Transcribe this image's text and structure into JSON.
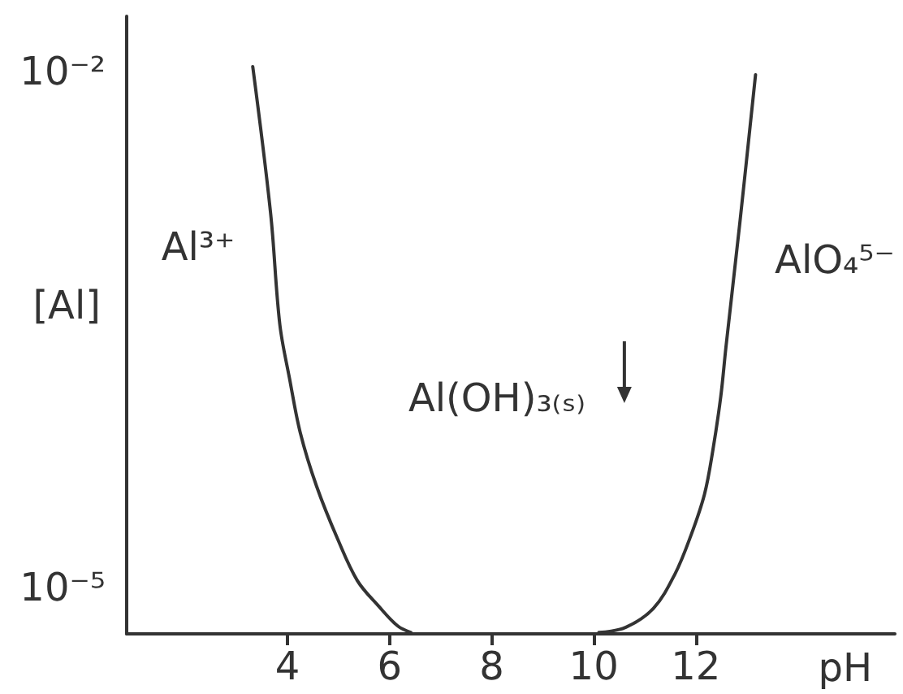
{
  "chart_data": {
    "type": "line",
    "xlabel": "pH",
    "ylabel": "[Al]",
    "log": "y",
    "xlim": [
      0.85,
      15.9
    ],
    "xticks": [
      4,
      6,
      8,
      10,
      12
    ],
    "ylim": [
      5.4e-06,
      0.021
    ],
    "yticks": [
      {
        "value": 0.01,
        "label": "10⁻²"
      },
      {
        "value": 1e-05,
        "label": "10⁻⁵"
      }
    ],
    "marker": "none",
    "line_style": "solid",
    "series": [
      {
        "color": "#333333",
        "x": [
          3.32,
          3.67,
          3.85,
          4.04,
          4.25,
          4.57,
          4.99,
          5.37,
          5.79,
          6.16,
          6.42
        ],
        "values": [
          0.0107,
          0.0015,
          0.00034,
          0.000165,
          8e-05,
          3.9e-05,
          1.9e-05,
          1.1e-05,
          7.8e-06,
          6e-06,
          5.5e-06
        ]
      },
      {
        "color": "#333333",
        "x": [
          10.1,
          10.63,
          11.17,
          11.59,
          11.9,
          12.17,
          12.33,
          12.49,
          12.59,
          12.86,
          13.17
        ],
        "values": [
          5.5e-06,
          5.9e-06,
          7.6e-06,
          1.2e-05,
          2e-05,
          3.5e-05,
          6.2e-05,
          0.00013,
          0.00025,
          0.0013,
          0.0096
        ]
      }
    ],
    "annotations": [
      "Al³⁺",
      "AlO₄⁵⁻",
      "Al(OH)₃₍ₛ₎"
    ]
  }
}
